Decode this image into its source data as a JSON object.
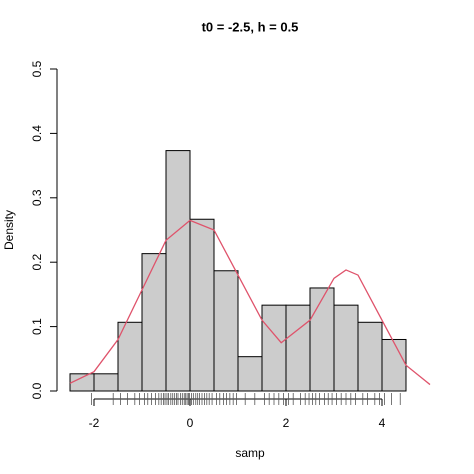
{
  "chart_data": {
    "type": "histogram",
    "title": "t0 = -2.5, h = 0.5",
    "x_label": "samp",
    "y_label": "Density",
    "bins": [
      -2.5,
      -2,
      -1.5,
      -1,
      -0.5,
      0,
      0.5,
      1,
      1.5,
      2,
      2.5,
      3,
      3.5,
      4,
      4.5
    ],
    "values": [
      0.0267,
      0.0267,
      0.1067,
      0.2133,
      0.3733,
      0.2667,
      0.1867,
      0.0533,
      0.1333,
      0.1333,
      0.16,
      0.1333,
      0.1067,
      0.08
    ],
    "color": "#cccccc",
    "curve": {
      "color": "#df536b",
      "x": [
        -2.5,
        -2,
        -1.5,
        -1,
        -0.5,
        0,
        0.5,
        1,
        1.5,
        1.9,
        2.5,
        3,
        3.25,
        3.5,
        4,
        4.5,
        5
      ],
      "y": [
        0.012,
        0.03,
        0.08,
        0.157,
        0.234,
        0.265,
        0.25,
        0.18,
        0.11,
        0.075,
        0.11,
        0.175,
        0.188,
        0.18,
        0.11,
        0.04,
        0.01
      ]
    },
    "rug": [
      -2.05,
      -1.6,
      -1.45,
      -1.3,
      -1.15,
      -1.05,
      -0.95,
      -0.88,
      -0.8,
      -0.72,
      -0.65,
      -0.6,
      -0.55,
      -0.52,
      -0.48,
      -0.45,
      -0.4,
      -0.36,
      -0.32,
      -0.28,
      -0.25,
      -0.2,
      -0.16,
      -0.12,
      -0.09,
      -0.06,
      -0.03,
      -0.01,
      0.03,
      0.07,
      0.12,
      0.16,
      0.2,
      0.25,
      0.3,
      0.35,
      0.4,
      0.46,
      0.55,
      0.62,
      0.7,
      0.76,
      0.83,
      0.9,
      0.97,
      1.15,
      1.35,
      1.55,
      1.65,
      1.75,
      1.85,
      1.95,
      2.05,
      2.15,
      2.3,
      2.4,
      2.48,
      2.55,
      2.62,
      2.7,
      2.8,
      2.88,
      2.96,
      3.05,
      3.15,
      3.25,
      3.35,
      3.45,
      3.6,
      3.7,
      3.85,
      3.95,
      4.05,
      4.2,
      4.38
    ],
    "xlim": [
      -2.5,
      5
    ],
    "ylim": [
      0,
      0.5
    ],
    "xticks": [
      -2,
      0,
      2,
      4
    ],
    "yticks": [
      {
        "value": 0,
        "label": "0.0"
      },
      0.1,
      0.2,
      0.3,
      0.4,
      0.5
    ]
  }
}
